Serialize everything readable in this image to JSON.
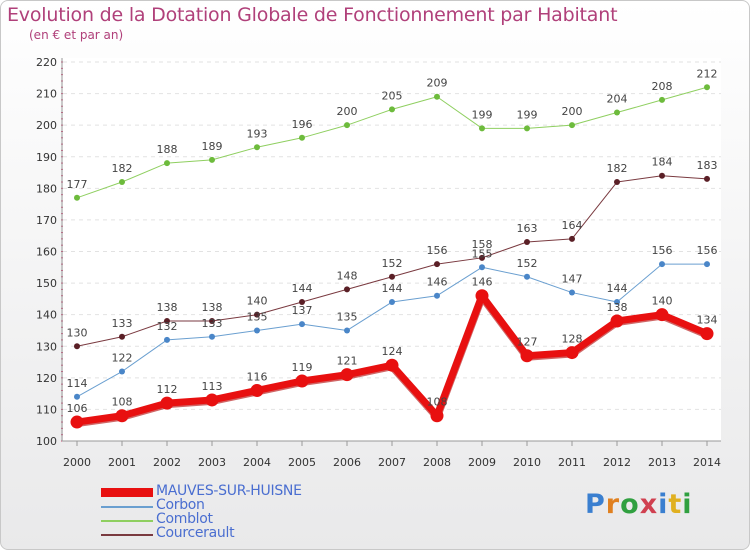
{
  "title": "Evolution de la Dotation Globale de Fonctionnement par Habitant",
  "subtitle": "(en € et par an)",
  "logo": {
    "text": "Proxiti",
    "letter_colors": [
      "#3a7fd0",
      "#e08020",
      "#30a040",
      "#d04050",
      "#3a7fd0",
      "#e0b020",
      "#30a040"
    ]
  },
  "chart_data": {
    "type": "line",
    "x": [
      2000,
      2001,
      2002,
      2003,
      2004,
      2005,
      2006,
      2007,
      2008,
      2009,
      2010,
      2011,
      2012,
      2013,
      2014
    ],
    "ylim": [
      100,
      220
    ],
    "yticks": [
      100,
      110,
      120,
      130,
      140,
      150,
      160,
      170,
      180,
      190,
      200,
      210,
      220
    ],
    "grid": true,
    "legend_position": "bottom",
    "series": [
      {
        "name": "Comblot",
        "color": "#8fcf60",
        "marker_color": "#6dbb3c",
        "width": 1,
        "values": [
          177,
          182,
          188,
          189,
          193,
          196,
          200,
          205,
          209,
          199,
          199,
          200,
          204,
          208,
          212
        ]
      },
      {
        "name": "Courcerault",
        "color": "#7a3a40",
        "marker_color": "#5a1f26",
        "width": 1,
        "values": [
          130,
          133,
          138,
          138,
          140,
          144,
          148,
          152,
          156,
          158,
          163,
          164,
          182,
          184,
          183
        ]
      },
      {
        "name": "Corbon",
        "color": "#6a9fd0",
        "marker_color": "#4a86c8",
        "width": 1,
        "values": [
          114,
          122,
          132,
          133,
          135,
          137,
          135,
          144,
          146,
          155,
          152,
          147,
          144,
          156,
          156
        ]
      },
      {
        "name": "MAUVES-SUR-HUISNE",
        "color": "#e81010",
        "marker_color": "#e81010",
        "width": 7,
        "values": [
          106,
          108,
          112,
          113,
          116,
          119,
          121,
          124,
          108,
          146,
          127,
          128,
          138,
          140,
          134
        ]
      }
    ],
    "legend_order": [
      "MAUVES-SUR-HUISNE",
      "Corbon",
      "Comblot",
      "Courcerault"
    ]
  }
}
